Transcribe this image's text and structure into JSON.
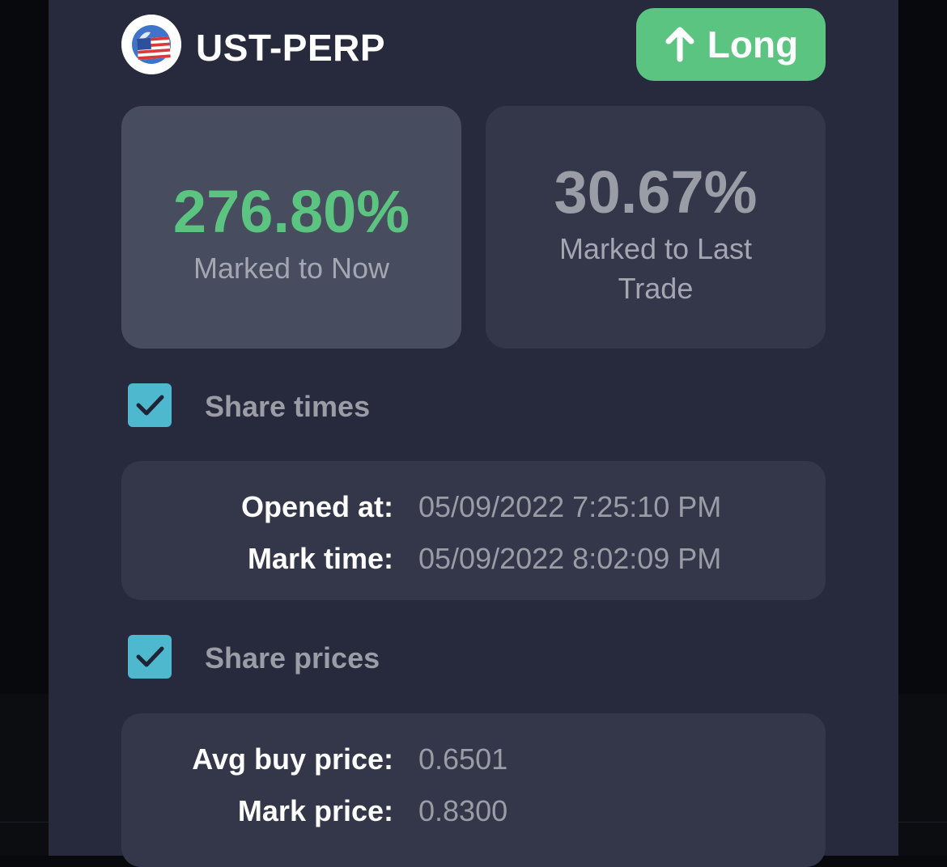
{
  "header": {
    "market": "UST-PERP",
    "market_icon": "us-flag-globe-icon",
    "side_icon": "arrow-up-icon",
    "side_label": "Long"
  },
  "pnl": {
    "marked_to_now": {
      "value": "276.80%",
      "label": "Marked to Now"
    },
    "marked_to_last_trade": {
      "value": "30.67%",
      "label": "Marked to Last Trade"
    }
  },
  "share_times": {
    "checked": true,
    "label": "Share times",
    "rows": [
      {
        "label": "Opened at:",
        "value": "05/09/2022 7:25:10 PM"
      },
      {
        "label": "Mark time:",
        "value": "05/09/2022 8:02:09 PM"
      }
    ]
  },
  "share_prices": {
    "checked": true,
    "label": "Share prices",
    "rows": [
      {
        "label": "Avg buy price:",
        "value": "0.6501"
      },
      {
        "label": "Mark price:",
        "value": "0.8300"
      }
    ]
  },
  "colors": {
    "panel": "#262a3c",
    "positive": "#5cc481",
    "checkbox": "#4eb8cf",
    "muted_text": "#9a9ca6"
  }
}
